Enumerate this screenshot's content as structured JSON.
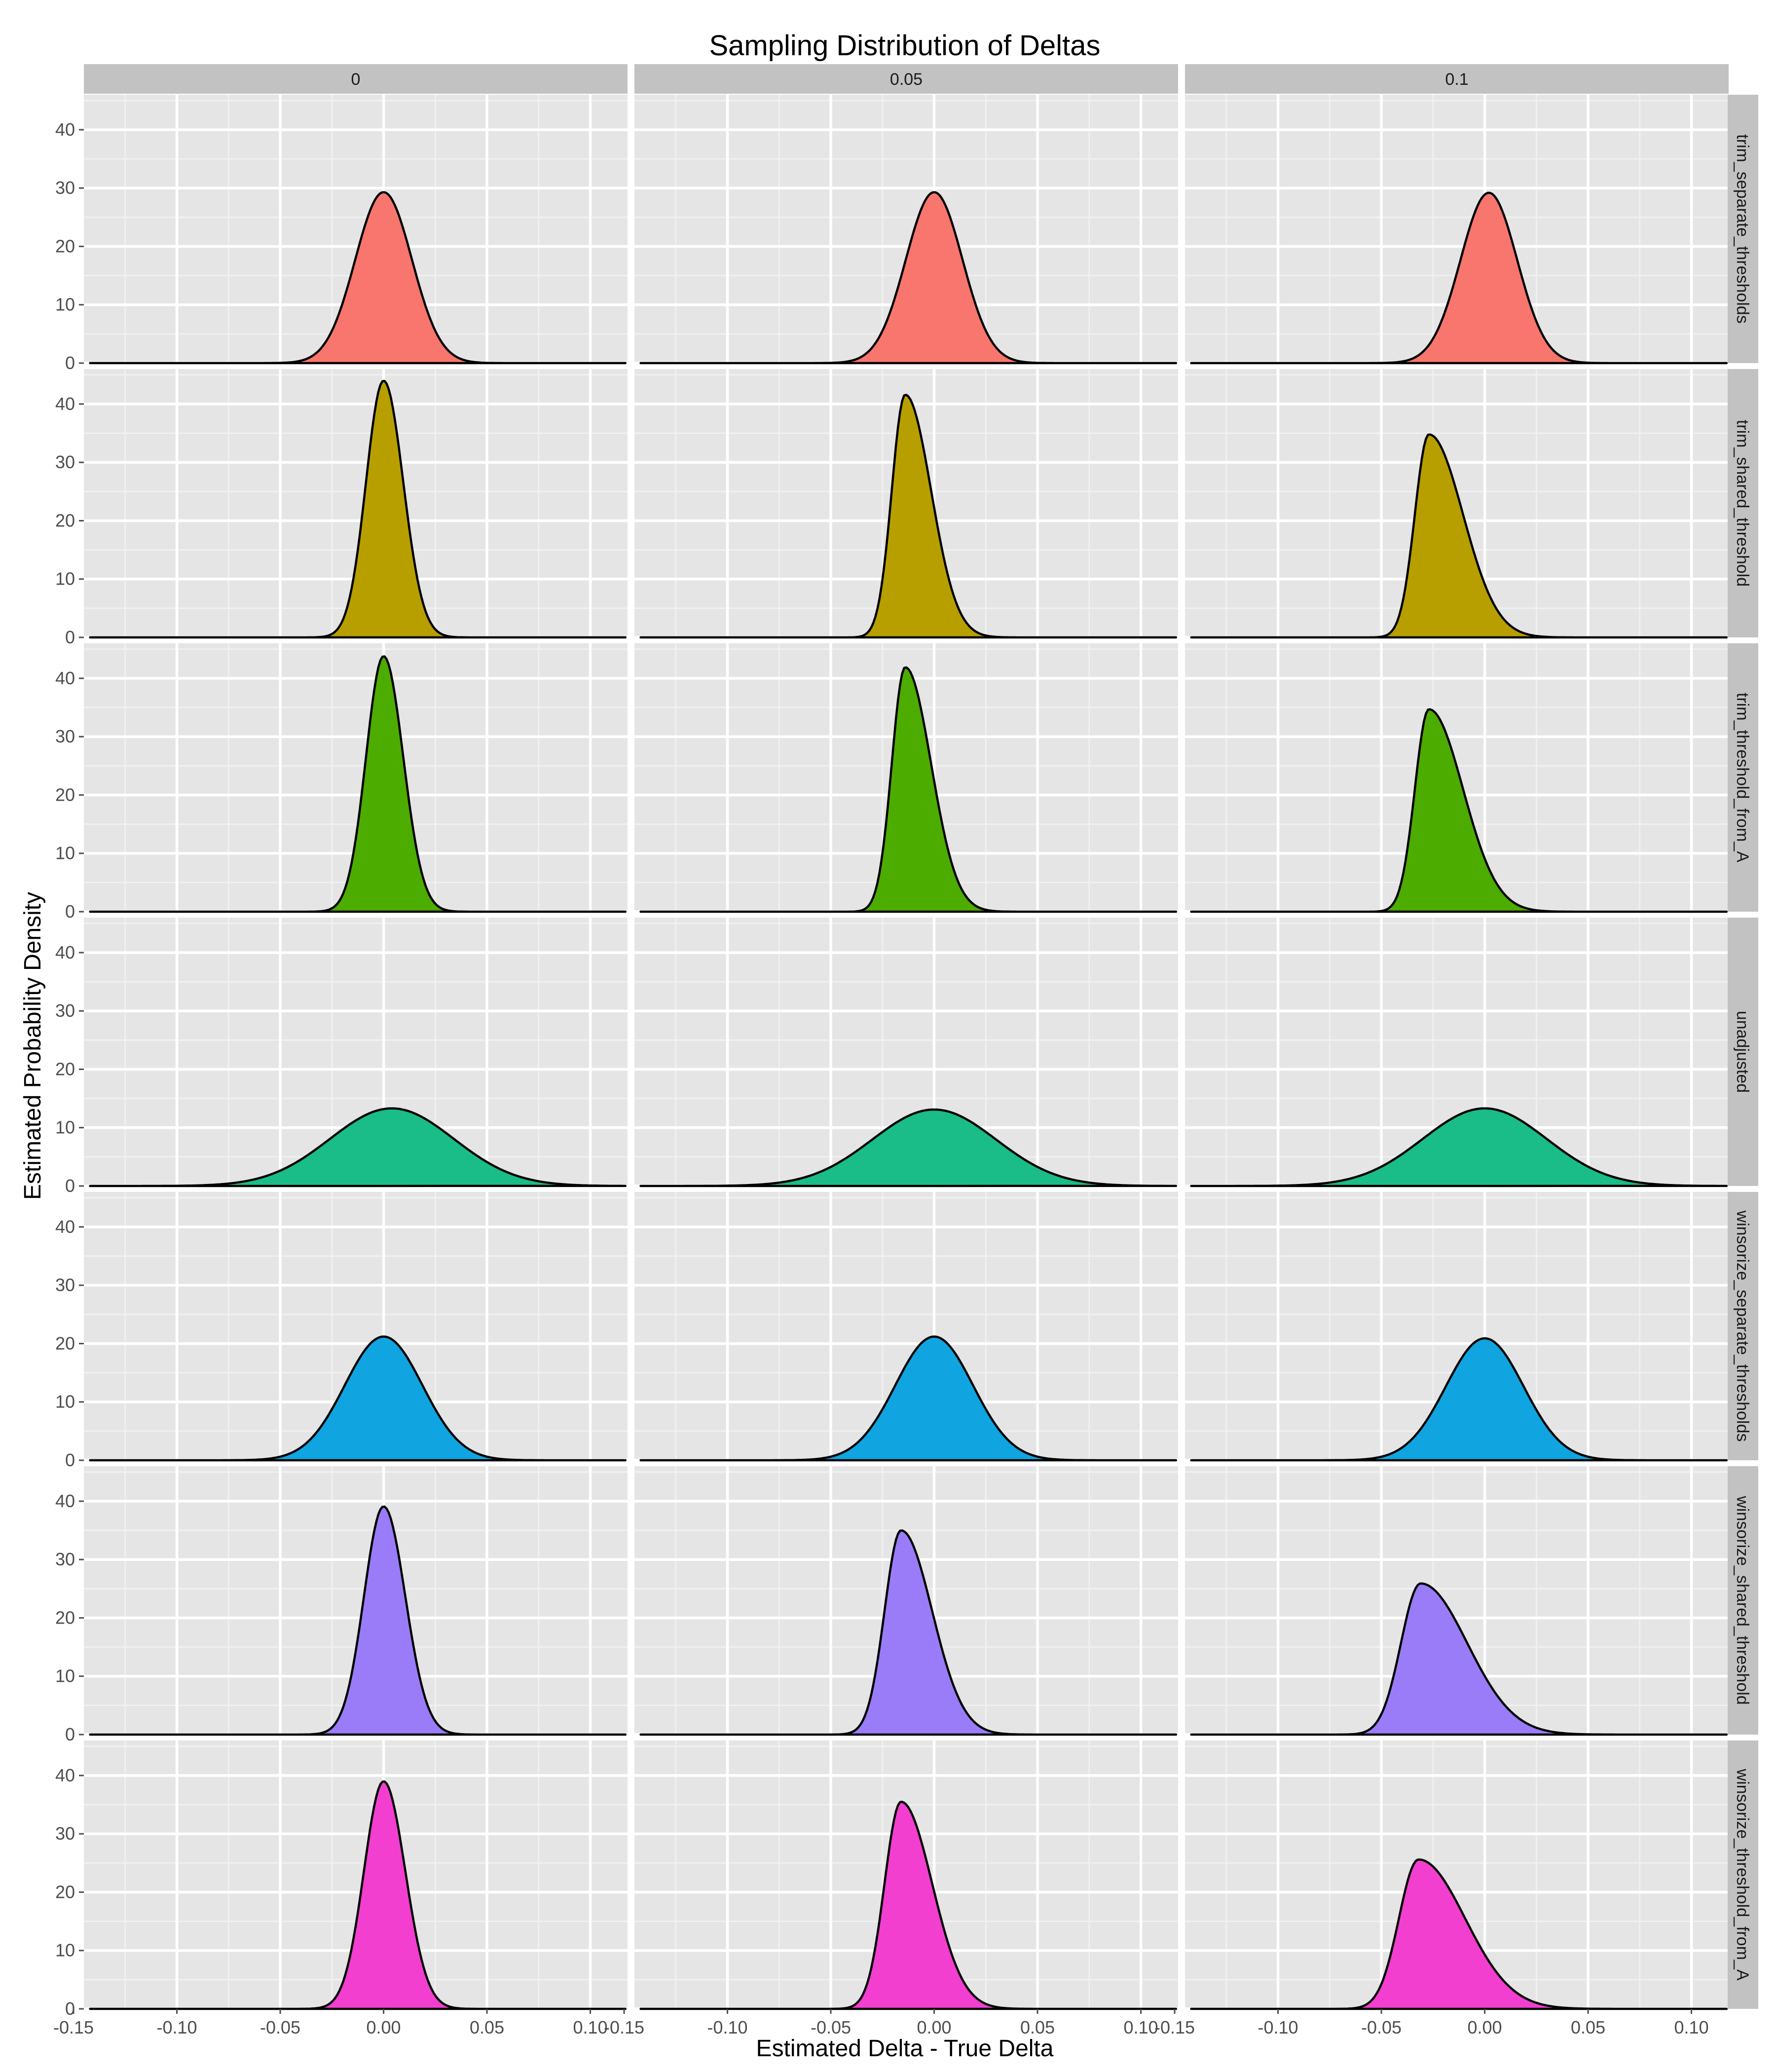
{
  "chart_data": {
    "type": "area",
    "title": "Sampling Distribution of Deltas",
    "xlabel": "Estimated Delta - True Delta",
    "ylabel": "Estimated Probability Density",
    "xlim": [
      -0.145,
      0.118
    ],
    "ylim": [
      0,
      46
    ],
    "x_ticks": [
      -0.15,
      -0.1,
      -0.05,
      0.0,
      0.05,
      0.1
    ],
    "x_tick_labels": [
      "-0.15",
      "-0.10",
      "-0.05",
      "0.00",
      "0.05",
      "0.10"
    ],
    "y_ticks": [
      0,
      10,
      20,
      30,
      40
    ],
    "y_tick_labels": [
      "0",
      "10",
      "20",
      "30",
      "40"
    ],
    "grid": true,
    "facet_columns": [
      "0",
      "0.05",
      "0.1"
    ],
    "facet_rows": [
      "trim_separate_thresholds",
      "trim_shared_threshold",
      "trim_threshold_from_A",
      "unadjusted",
      "winsorize_separate_thresholds",
      "winsorize_shared_threshold",
      "winsorize_threshold_from_A"
    ],
    "row_colors": [
      "#F8766D",
      "#B79F00",
      "#4DAC00",
      "#1ABC88",
      "#10A5E0",
      "#9A7CF8",
      "#F23FD0"
    ],
    "series": [
      {
        "row": "trim_separate_thresholds",
        "column": "0",
        "peak_x": 0.0,
        "peak_density": 29.3,
        "sd_left": 0.0137,
        "sd_right": 0.0137
      },
      {
        "row": "trim_separate_thresholds",
        "column": "0.05",
        "peak_x": 0.0,
        "peak_density": 29.3,
        "sd_left": 0.0137,
        "sd_right": 0.0137
      },
      {
        "row": "trim_separate_thresholds",
        "column": "0.1",
        "peak_x": 0.002,
        "peak_density": 29.2,
        "sd_left": 0.0137,
        "sd_right": 0.0137
      },
      {
        "row": "trim_shared_threshold",
        "column": "0",
        "peak_x": 0.0,
        "peak_density": 44.0,
        "sd_left": 0.0085,
        "sd_right": 0.0095
      },
      {
        "row": "trim_shared_threshold",
        "column": "0.05",
        "peak_x": -0.014,
        "peak_density": 41.6,
        "sd_left": 0.0065,
        "sd_right": 0.0125
      },
      {
        "row": "trim_shared_threshold",
        "column": "0.1",
        "peak_x": -0.027,
        "peak_density": 34.8,
        "sd_left": 0.0068,
        "sd_right": 0.0165
      },
      {
        "row": "trim_threshold_from_A",
        "column": "0",
        "peak_x": 0.0,
        "peak_density": 43.8,
        "sd_left": 0.0085,
        "sd_right": 0.0095
      },
      {
        "row": "trim_threshold_from_A",
        "column": "0.05",
        "peak_x": -0.014,
        "peak_density": 41.9,
        "sd_left": 0.0065,
        "sd_right": 0.0125
      },
      {
        "row": "trim_threshold_from_A",
        "column": "0.1",
        "peak_x": -0.027,
        "peak_density": 34.7,
        "sd_left": 0.0068,
        "sd_right": 0.0165
      },
      {
        "row": "unadjusted",
        "column": "0",
        "peak_x": 0.004,
        "peak_density": 13.3,
        "sd_left": 0.03,
        "sd_right": 0.03
      },
      {
        "row": "unadjusted",
        "column": "0.05",
        "peak_x": 0.0,
        "peak_density": 13.1,
        "sd_left": 0.03,
        "sd_right": 0.03
      },
      {
        "row": "unadjusted",
        "column": "0.1",
        "peak_x": 0.0,
        "peak_density": 13.3,
        "sd_left": 0.03,
        "sd_right": 0.03
      },
      {
        "row": "winsorize_separate_thresholds",
        "column": "0",
        "peak_x": 0.0,
        "peak_density": 21.2,
        "sd_left": 0.0188,
        "sd_right": 0.0188
      },
      {
        "row": "winsorize_separate_thresholds",
        "column": "0.05",
        "peak_x": 0.0,
        "peak_density": 21.2,
        "sd_left": 0.0188,
        "sd_right": 0.0188
      },
      {
        "row": "winsorize_separate_thresholds",
        "column": "0.1",
        "peak_x": 0.0,
        "peak_density": 20.9,
        "sd_left": 0.0188,
        "sd_right": 0.0188
      },
      {
        "row": "winsorize_shared_threshold",
        "column": "0",
        "peak_x": 0.0,
        "peak_density": 39.1,
        "sd_left": 0.0095,
        "sd_right": 0.0105
      },
      {
        "row": "winsorize_shared_threshold",
        "column": "0.05",
        "peak_x": -0.016,
        "peak_density": 35.0,
        "sd_left": 0.008,
        "sd_right": 0.015
      },
      {
        "row": "winsorize_shared_threshold",
        "column": "0.1",
        "peak_x": -0.031,
        "peak_density": 25.9,
        "sd_left": 0.0095,
        "sd_right": 0.0225
      },
      {
        "row": "winsorize_threshold_from_A",
        "column": "0",
        "peak_x": 0.0,
        "peak_density": 39.0,
        "sd_left": 0.0095,
        "sd_right": 0.0105
      },
      {
        "row": "winsorize_threshold_from_A",
        "column": "0.05",
        "peak_x": -0.016,
        "peak_density": 35.5,
        "sd_left": 0.008,
        "sd_right": 0.015
      },
      {
        "row": "winsorize_threshold_from_A",
        "column": "0.1",
        "peak_x": -0.032,
        "peak_density": 25.6,
        "sd_left": 0.0095,
        "sd_right": 0.0225
      }
    ]
  }
}
